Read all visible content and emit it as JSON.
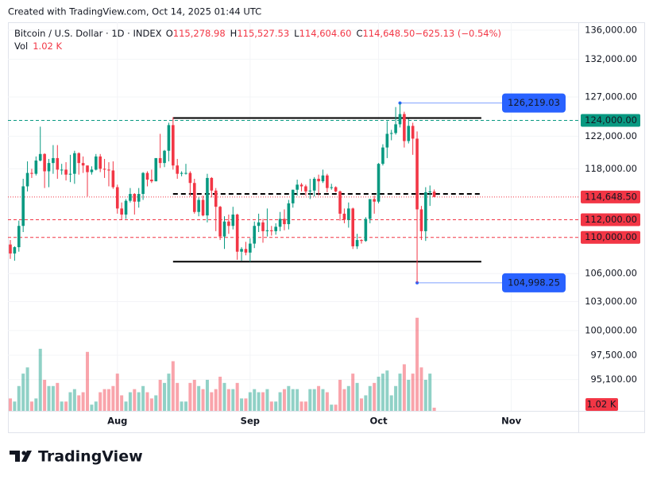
{
  "caption": "Created with TradingView.com, Oct 14, 2025 01:44 UTC",
  "brand": "TradingView",
  "chart_data": {
    "type": "candlestick",
    "symbol": "Bitcoin / U.S. Dollar · 1D · INDEX",
    "legend": [
      {
        "key": "O",
        "text": "115,278.98"
      },
      {
        "key": "H",
        "text": "115,527.53"
      },
      {
        "key": "L",
        "text": "114,604.60"
      },
      {
        "key": "C",
        "text": "114,648.50"
      },
      {
        "key": "",
        "text": "−625.13 (−0.54%)"
      }
    ],
    "volume_name": "Vol",
    "volume_label": "1.02 K",
    "up_color": "#089981",
    "down_color": "#f23645",
    "log_scale": true,
    "grid": true,
    "ylim": [
      92100,
      137100
    ],
    "yticks": [
      {
        "value": 136000,
        "label": "136,000.00"
      },
      {
        "value": 132000,
        "label": "132,000.00"
      },
      {
        "value": 127000,
        "label": "127,000.00"
      },
      {
        "value": 122000,
        "label": "122,000.00"
      },
      {
        "value": 118000,
        "label": "118,000.00"
      },
      {
        "value": 106000,
        "label": "106,000.00"
      },
      {
        "value": 103000,
        "label": "103,000.00"
      },
      {
        "value": 100000,
        "label": "100,000.00"
      },
      {
        "value": 97500,
        "label": "97,500.00"
      },
      {
        "value": 95100,
        "label": "95,100.00"
      }
    ],
    "xticks": [
      {
        "value": 25,
        "label": "Aug"
      },
      {
        "value": 56,
        "label": "Sep"
      },
      {
        "value": 86,
        "label": "Oct"
      },
      {
        "value": 117,
        "label": "Nov"
      }
    ],
    "vlim": [
      0,
      32
    ],
    "ohlc": [
      [
        109200,
        109700,
        107600,
        108200
      ],
      [
        108200,
        109000,
        107400,
        108900
      ],
      [
        108900,
        111900,
        108400,
        111300
      ],
      [
        111300,
        116800,
        110600,
        115900
      ],
      [
        115900,
        118900,
        115300,
        117500
      ],
      [
        117500,
        118000,
        116900,
        117400
      ],
      [
        117400,
        119500,
        117200,
        119000
      ],
      [
        119000,
        123200,
        118900,
        119800
      ],
      [
        119800,
        119900,
        115700,
        117700
      ],
      [
        117700,
        119200,
        115800,
        118700
      ],
      [
        118700,
        120900,
        117400,
        119300
      ],
      [
        119300,
        120900,
        116800,
        117900
      ],
      [
        117900,
        118600,
        117300,
        117900
      ],
      [
        117900,
        118800,
        116600,
        117300
      ],
      [
        117300,
        119700,
        116400,
        117400
      ],
      [
        117400,
        120200,
        116200,
        119900
      ],
      [
        119900,
        120000,
        117300,
        118700
      ],
      [
        118700,
        119500,
        117500,
        118400
      ],
      [
        118400,
        118400,
        114700,
        117600
      ],
      [
        117600,
        118300,
        117300,
        117900
      ],
      [
        117900,
        119800,
        117800,
        119500
      ],
      [
        119500,
        119800,
        117600,
        118000
      ],
      [
        118000,
        119200,
        116900,
        117900
      ],
      [
        117900,
        118800,
        115900,
        117800
      ],
      [
        117800,
        118900,
        115600,
        115800
      ],
      [
        115800,
        116100,
        112700,
        113300
      ],
      [
        113300,
        114000,
        112000,
        112600
      ],
      [
        112600,
        114400,
        112100,
        114200
      ],
      [
        114200,
        115700,
        114000,
        115000
      ],
      [
        115000,
        115100,
        112600,
        114100
      ],
      [
        114100,
        115700,
        113400,
        115000
      ],
      [
        115000,
        117600,
        114300,
        117500
      ],
      [
        117500,
        117700,
        115900,
        116700
      ],
      [
        116700,
        117900,
        116300,
        116500
      ],
      [
        116500,
        119300,
        116500,
        119300
      ],
      [
        119300,
        122300,
        118100,
        118700
      ],
      [
        118700,
        120300,
        118200,
        120200
      ],
      [
        120200,
        123700,
        118900,
        123400
      ],
      [
        123400,
        124400,
        117900,
        118400
      ],
      [
        118400,
        119200,
        116800,
        117400
      ],
      [
        117400,
        117700,
        117100,
        117500
      ],
      [
        117500,
        118600,
        117300,
        117500
      ],
      [
        117500,
        117700,
        114700,
        116300
      ],
      [
        116300,
        116800,
        112700,
        112900
      ],
      [
        112900,
        114600,
        112400,
        114300
      ],
      [
        114300,
        114800,
        112400,
        112500
      ],
      [
        112500,
        117400,
        111700,
        116900
      ],
      [
        116900,
        117000,
        114600,
        115400
      ],
      [
        115400,
        115700,
        110700,
        113500
      ],
      [
        113500,
        113600,
        109700,
        110100
      ],
      [
        110100,
        112400,
        108700,
        111800
      ],
      [
        111800,
        112600,
        110400,
        111300
      ],
      [
        111300,
        113500,
        110900,
        112600
      ],
      [
        112600,
        112700,
        107500,
        108400
      ],
      [
        108400,
        108900,
        107400,
        108700
      ],
      [
        108700,
        109500,
        108000,
        108300
      ],
      [
        108300,
        109900,
        107300,
        109300
      ],
      [
        109300,
        111800,
        108800,
        111300
      ],
      [
        111300,
        112700,
        110600,
        111700
      ],
      [
        111700,
        112100,
        109400,
        110700
      ],
      [
        110700,
        113300,
        110100,
        110800
      ],
      [
        110800,
        111300,
        110200,
        110700
      ],
      [
        110700,
        111600,
        110300,
        111200
      ],
      [
        111200,
        112900,
        110700,
        112100
      ],
      [
        112100,
        113200,
        110800,
        111500
      ],
      [
        111500,
        114300,
        110900,
        113900
      ],
      [
        113900,
        115500,
        113400,
        115500
      ],
      [
        115500,
        116700,
        114800,
        116100
      ],
      [
        116100,
        116300,
        115300,
        115900
      ],
      [
        115900,
        116100,
        114800,
        115300
      ],
      [
        115300,
        116800,
        114400,
        115400
      ],
      [
        115400,
        117000,
        114700,
        116800
      ],
      [
        116800,
        117300,
        114800,
        116500
      ],
      [
        116500,
        117900,
        116300,
        117200
      ],
      [
        117200,
        117400,
        115200,
        115700
      ],
      [
        115700,
        116200,
        115500,
        115800
      ],
      [
        115800,
        115900,
        115200,
        115300
      ],
      [
        115300,
        115400,
        111900,
        112700
      ],
      [
        112700,
        113300,
        111600,
        112000
      ],
      [
        112000,
        114000,
        111100,
        113300
      ],
      [
        113300,
        113400,
        108700,
        109000
      ],
      [
        109000,
        110400,
        108700,
        109700
      ],
      [
        109700,
        109800,
        109300,
        109600
      ],
      [
        109600,
        112300,
        109500,
        112100
      ],
      [
        112100,
        114400,
        111600,
        114400
      ],
      [
        114400,
        114800,
        112700,
        114100
      ],
      [
        114100,
        118700,
        113900,
        118600
      ],
      [
        118600,
        121000,
        118400,
        120600
      ],
      [
        120600,
        123900,
        119300,
        122300
      ],
      [
        122300,
        122800,
        121500,
        122400
      ],
      [
        122400,
        125700,
        122200,
        123500
      ],
      [
        123500,
        126219.03,
        123100,
        124800
      ],
      [
        124800,
        125100,
        120600,
        121400
      ],
      [
        121400,
        124200,
        121100,
        123300
      ],
      [
        123300,
        123700,
        119700,
        121700
      ],
      [
        121700,
        122600,
        104998.25,
        113200
      ],
      [
        113200,
        113600,
        109700,
        110700
      ],
      [
        110700,
        115800,
        109600,
        115200
      ],
      [
        115200,
        116000,
        113600,
        115300
      ],
      [
        115278.98,
        115527.53,
        114604.6,
        114648.5
      ]
    ],
    "volume": [
      4,
      3,
      8,
      12,
      14,
      3,
      4,
      20,
      10,
      8,
      8,
      9,
      3,
      3,
      6,
      7,
      5,
      6,
      19,
      2,
      3,
      6,
      7,
      7,
      8,
      12,
      5,
      3,
      6,
      7,
      6,
      8,
      6,
      4,
      5,
      10,
      9,
      12,
      16,
      9,
      3,
      3,
      9,
      10,
      8,
      7,
      10,
      6,
      7,
      11,
      9,
      7,
      7,
      9,
      4,
      4,
      6,
      7,
      6,
      6,
      7,
      3,
      3,
      6,
      7,
      8,
      7,
      7,
      3,
      3,
      7,
      7,
      8,
      7,
      6,
      2,
      2,
      10,
      7,
      8,
      12,
      9,
      4,
      5,
      8,
      9,
      11,
      12,
      13,
      5,
      8,
      12,
      15,
      10,
      12,
      30,
      14,
      10,
      12,
      1.02
    ],
    "lines": [
      {
        "value": 124300,
        "color": "#000000",
        "style": "solid",
        "from": 38,
        "to": 110
      },
      {
        "value": 115000,
        "color": "#000000",
        "style": "dashed",
        "from": 38,
        "to": 110
      },
      {
        "value": 107300,
        "color": "#000000",
        "style": "solid",
        "from": 38,
        "to": 110
      },
      {
        "value": 124000,
        "label": "124,000.00",
        "color": "#089981",
        "style": "dashed"
      },
      {
        "value": 114648.5,
        "label": "114,648.50",
        "color": "#f23645",
        "style": "dotted"
      },
      {
        "value": 112000,
        "label": "112,000.00",
        "color": "#f23645",
        "style": "dashed"
      },
      {
        "value": 110000,
        "label": "110,000.00",
        "color": "#f23645",
        "style": "dashed"
      },
      {
        "value": 126219.03,
        "label": "126,219.03",
        "color": "#2962ff",
        "style": "range",
        "from": 91
      },
      {
        "value": 104998.25,
        "label": "104,998.25",
        "color": "#2962ff",
        "style": "range",
        "from": 95
      }
    ]
  }
}
